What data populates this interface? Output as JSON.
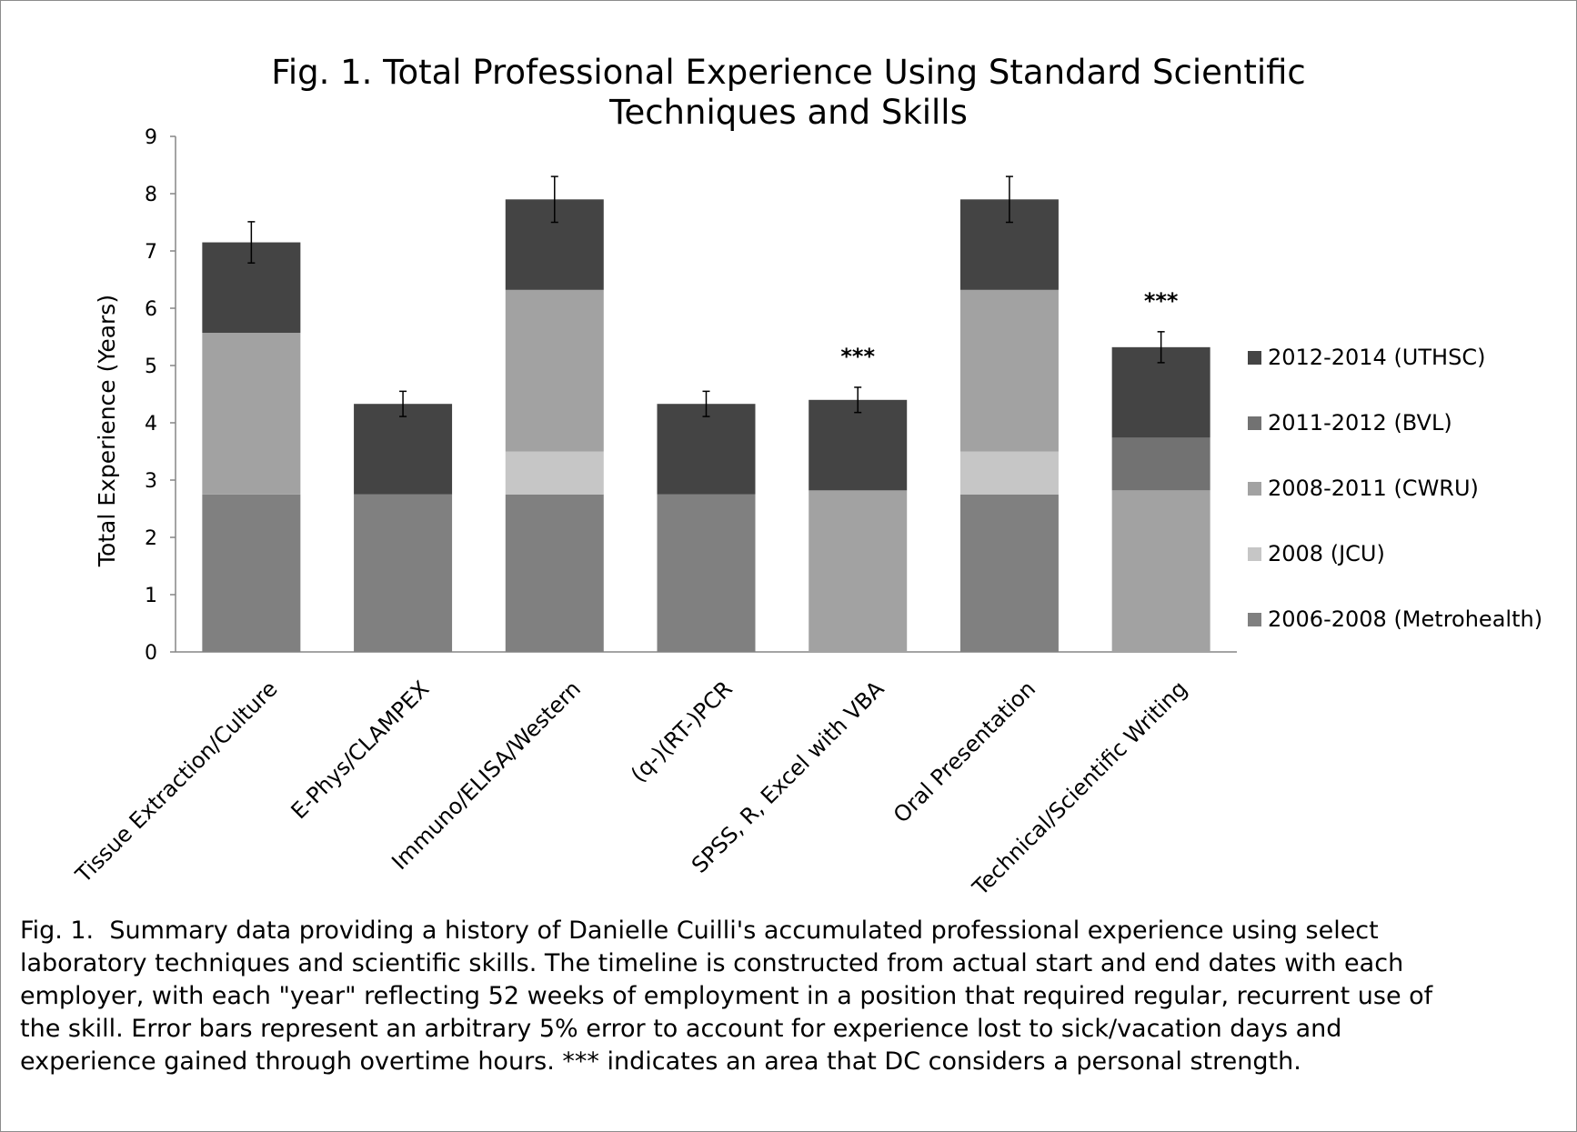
{
  "chart_data": {
    "type": "bar",
    "stacked": true,
    "title": "Fig. 1. Total Professional Experience Using Standard Scientific Techniques and Skills",
    "title_lines": [
      "Fig. 1. Total Professional Experience Using Standard Scientific",
      "Techniques and Skills"
    ],
    "xlabel": "",
    "ylabel": "Total Experience (Years)",
    "ylim": [
      0,
      9
    ],
    "yticks": [
      0,
      1,
      2,
      3,
      4,
      5,
      6,
      7,
      8,
      9
    ],
    "grid": false,
    "legend_position": "right",
    "error_bars": "5% of total",
    "categories": [
      "Tissue Extraction/Culture",
      "E-Phys/CLAMPEX",
      "Immuno/ELISA/Western",
      "(q-)(RT-)PCR",
      "SPSS, R, Excel with VBA",
      "Oral Presentation",
      "Technical/Scientific Writing"
    ],
    "series": [
      {
        "name": "2006-2008 (Metrohealth)",
        "color": "#808080",
        "values": [
          2.75,
          2.75,
          2.75,
          2.75,
          0,
          2.75,
          0
        ]
      },
      {
        "name": "2008 (JCU)",
        "color": "#c6c6c6",
        "values": [
          0,
          0,
          0.75,
          0,
          0,
          0.75,
          0
        ]
      },
      {
        "name": "2008-2011 (CWRU)",
        "color": "#a2a2a2",
        "values": [
          2.82,
          0,
          2.82,
          0,
          2.82,
          2.82,
          2.82
        ]
      },
      {
        "name": "2011-2012 (BVL)",
        "color": "#727272",
        "values": [
          0,
          0,
          0,
          0,
          0,
          0,
          0.92
        ]
      },
      {
        "name": "2012-2014 (UTHSC)",
        "color": "#444444",
        "values": [
          1.58,
          1.58,
          1.58,
          1.58,
          1.58,
          1.58,
          1.58
        ]
      }
    ],
    "totals": [
      7.15,
      4.33,
      7.9,
      4.33,
      4.4,
      7.9,
      5.32
    ],
    "error": [
      0.36,
      0.22,
      0.4,
      0.22,
      0.22,
      0.4,
      0.27
    ],
    "annotations": [
      {
        "category": "SPSS, R, Excel with VBA",
        "text": "***"
      },
      {
        "category": "Technical/Scientific Writing",
        "text": "***"
      }
    ]
  },
  "caption": {
    "lead": "Fig. 1.",
    "lines": [
      "Summary data providing a history of Danielle Cuilli's accumulated professional experience using select",
      "laboratory techniques and scientific skills. The timeline is constructed from actual start and end dates with each",
      "employer, with each \"year\" reflecting 52 weeks of employment in a position that required regular, recurrent use of",
      "the skill.  Error bars represent an arbitrary 5% error to account for experience lost to sick/vacation days and",
      "experience gained through overtime hours.   *** indicates an area that DC considers a personal strength."
    ]
  }
}
